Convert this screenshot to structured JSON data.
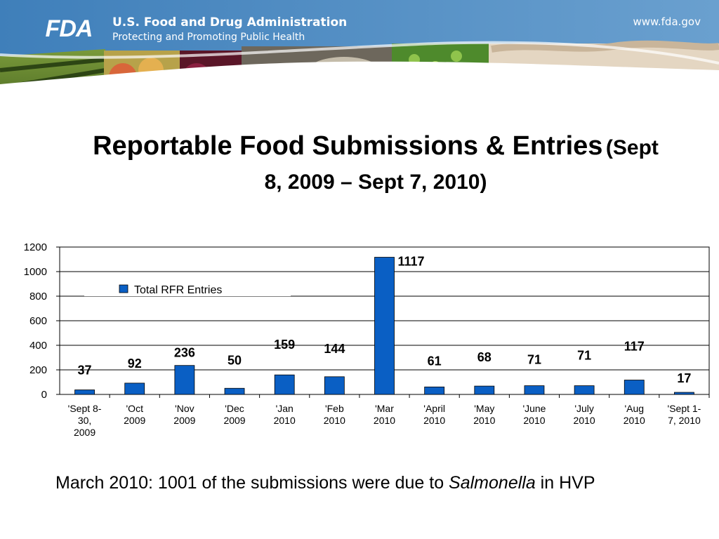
{
  "header": {
    "logo_text": "FDA",
    "agency_name": "U.S. Food and Drug Administration",
    "agency_tagline": "Protecting and Promoting Public Health",
    "site_url": "www.fda.gov",
    "banner_color": "#4a87bf"
  },
  "slide": {
    "title_main": "Reportable Food Submissions & Entries",
    "title_sub_part1": "(Sept",
    "title_sub_part2": "8, 2009 – Sept 7, 2010)"
  },
  "chart_data": {
    "type": "bar",
    "categories": [
      [
        "'Sept 8-",
        "30,",
        "2009"
      ],
      [
        "'Oct",
        "2009"
      ],
      [
        "'Nov",
        "2009"
      ],
      [
        "'Dec",
        "2009"
      ],
      [
        "'Jan",
        "2010"
      ],
      [
        "'Feb",
        "2010"
      ],
      [
        "'Mar",
        "2010"
      ],
      [
        "'April",
        "2010"
      ],
      [
        "'May",
        "2010"
      ],
      [
        "'June",
        "2010"
      ],
      [
        "'July",
        "2010"
      ],
      [
        "'Aug",
        "2010"
      ],
      [
        "'Sept 1-",
        "7, 2010"
      ]
    ],
    "series": [
      {
        "name": "Total RFR Entries",
        "values": [
          37,
          92,
          236,
          50,
          159,
          144,
          1117,
          61,
          68,
          71,
          71,
          117,
          17
        ]
      }
    ],
    "ylim": [
      0,
      1200
    ],
    "yticks": [
      0,
      200,
      400,
      600,
      800,
      1000,
      1200
    ],
    "grid": true,
    "legend_position": "upper-left",
    "bar_color": "#0a5fc4"
  },
  "footnote": {
    "before": "March 2010: 1001 of the submissions were due to ",
    "italic": "Salmonella",
    "after": " in HVP"
  }
}
